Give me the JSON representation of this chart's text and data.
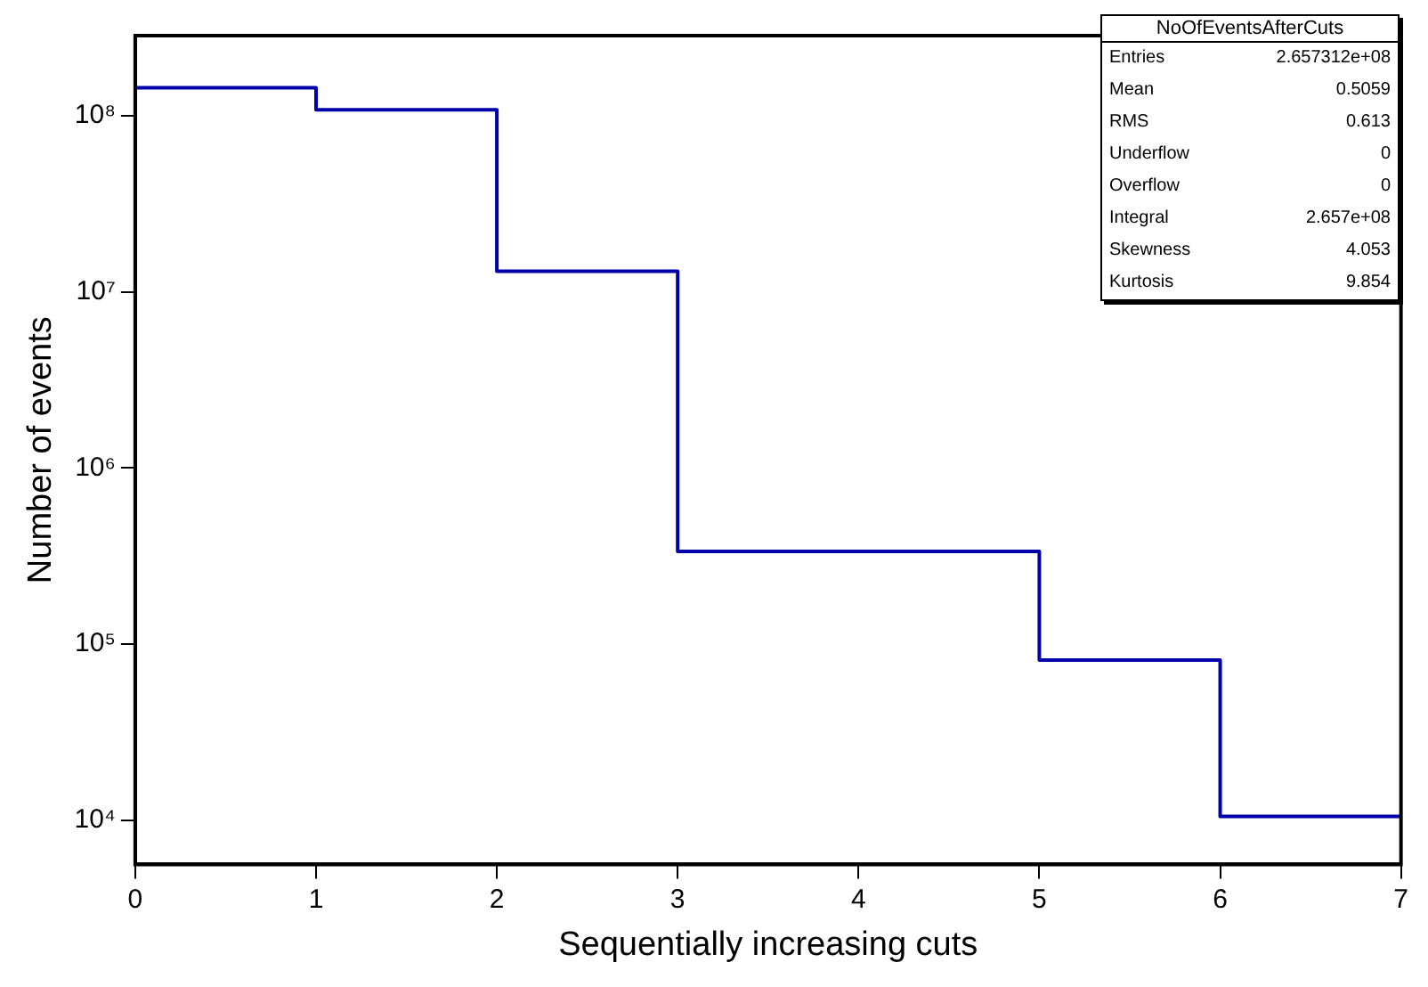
{
  "chart_data": {
    "type": "histogram",
    "xlabel": "Sequentially increasing cuts",
    "ylabel": "Number of events",
    "bins": [
      0,
      1,
      2,
      3,
      4,
      5,
      6,
      7
    ],
    "values": [
      144000000,
      108000000,
      13100000,
      336000,
      336000,
      81000,
      10500
    ],
    "color": "#0000aa",
    "log": "y",
    "xlim": [
      0,
      7
    ],
    "xticks": [
      0,
      1,
      2,
      3,
      4,
      5,
      6,
      7
    ],
    "ylim": [
      5600,
      285000000
    ],
    "yticks": [
      {
        "value": 10000,
        "label": "10⁴"
      },
      {
        "value": 100000,
        "label": "10⁵"
      },
      {
        "value": 1000000,
        "label": "10⁶"
      },
      {
        "value": 10000000,
        "label": "10⁷"
      },
      {
        "value": 100000000,
        "label": "10⁸"
      }
    ],
    "grid": false,
    "legend": false,
    "annotations": [
      "NoOfEventsAfterCuts",
      "Entries",
      "2.657312e+08",
      "Mean",
      "0.5059",
      "RMS",
      "0.613",
      "Underflow",
      "0",
      "Overflow",
      "0",
      "Integral",
      "2.657e+08",
      "Skewness",
      "4.053",
      "Kurtosis",
      "9.854"
    ]
  }
}
